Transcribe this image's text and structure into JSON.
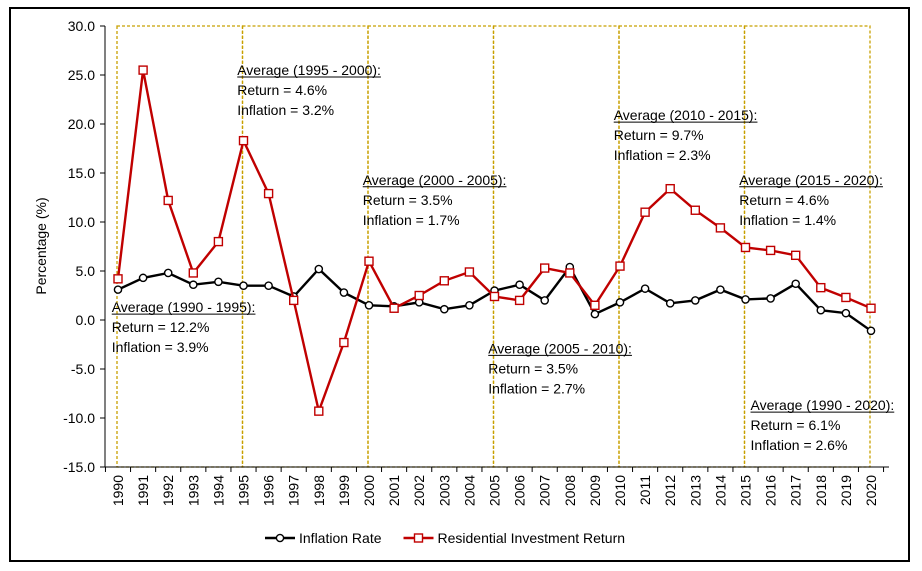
{
  "chart_data": {
    "type": "line",
    "title": "",
    "xlabel": "",
    "ylabel": "Percentage (%)",
    "ylim": [
      -15,
      30
    ],
    "y_ticks": [
      "-15.0",
      "-10.0",
      "-5.0",
      "0.0",
      "5.0",
      "10.0",
      "15.0",
      "20.0",
      "25.0",
      "30.0"
    ],
    "x": [
      "1990",
      "1991",
      "1992",
      "1993",
      "1994",
      "1995",
      "1996",
      "1997",
      "1998",
      "1999",
      "2000",
      "2001",
      "2002",
      "2003",
      "2004",
      "2005",
      "2006",
      "2007",
      "2008",
      "2009",
      "2010",
      "2011",
      "2012",
      "2013",
      "2014",
      "2015",
      "2016",
      "2017",
      "2018",
      "2019",
      "2020"
    ],
    "grid": false,
    "legend_position": "bottom",
    "series": [
      {
        "name": "Inflation Rate",
        "color": "#000000",
        "marker": "circle",
        "values": [
          3.1,
          4.3,
          4.8,
          3.6,
          3.9,
          3.5,
          3.5,
          2.4,
          5.2,
          2.8,
          1.5,
          1.4,
          1.8,
          1.1,
          1.5,
          3.0,
          3.6,
          2.0,
          5.4,
          0.6,
          1.8,
          3.2,
          1.7,
          2.0,
          3.1,
          2.1,
          2.2,
          3.7,
          1.0,
          0.7,
          -1.1
        ]
      },
      {
        "name": "Residential Investment Return",
        "color": "#c00000",
        "marker": "square",
        "values": [
          4.2,
          25.5,
          12.2,
          4.8,
          8.0,
          18.3,
          12.9,
          2.0,
          -9.3,
          -2.3,
          6.0,
          1.2,
          2.5,
          4.0,
          4.9,
          2.4,
          2.0,
          5.3,
          4.8,
          1.5,
          5.5,
          11.0,
          13.4,
          11.2,
          9.4,
          7.4,
          7.1,
          6.6,
          3.3,
          2.3,
          1.2
        ]
      }
    ],
    "period_boxes": [
      {
        "start": "1990",
        "end": "1995",
        "color": "#c8a000"
      },
      {
        "start": "1995",
        "end": "2000",
        "color": "#c8a000"
      },
      {
        "start": "2000",
        "end": "2005",
        "color": "#c8a000"
      },
      {
        "start": "2005",
        "end": "2010",
        "color": "#c8a000"
      },
      {
        "start": "2010",
        "end": "2015",
        "color": "#c8a000"
      },
      {
        "start": "2015",
        "end": "2020",
        "color": "#c8a000"
      }
    ],
    "annotations": [
      {
        "title": "Average (1990 - 1995):",
        "return": "Return = 12.2%",
        "inflation": "Inflation = 3.9%",
        "anchor_year": 1989.75,
        "anchor_value": 0.8
      },
      {
        "title": "Average (1995 - 2000):",
        "return": "Return = 4.6%",
        "inflation": "Inflation = 3.2%",
        "anchor_year": 1994.75,
        "anchor_value": 25.0
      },
      {
        "title": "Average (2000 - 2005):",
        "return": "Return = 3.5%",
        "inflation": "Inflation = 1.7%",
        "anchor_year": 1999.75,
        "anchor_value": 13.8
      },
      {
        "title": "Average (2005 - 2010):",
        "return": "Return = 3.5%",
        "inflation": "Inflation = 2.7%",
        "anchor_year": 2004.75,
        "anchor_value": -3.4
      },
      {
        "title": "Average (2010 - 2015):",
        "return": "Return = 9.7%",
        "inflation": "Inflation = 2.3%",
        "anchor_year": 2009.75,
        "anchor_value": 20.4
      },
      {
        "title": "Average (2015 - 2020):",
        "return": "Return = 4.6%",
        "inflation": "Inflation = 1.4%",
        "anchor_year": 2014.75,
        "anchor_value": 13.8
      },
      {
        "title": "Average (1990 - 2020):",
        "return": "Return = 6.1%",
        "inflation": "Inflation = 2.6%",
        "anchor_year": 2015.2,
        "anchor_value": -9.2
      }
    ]
  }
}
